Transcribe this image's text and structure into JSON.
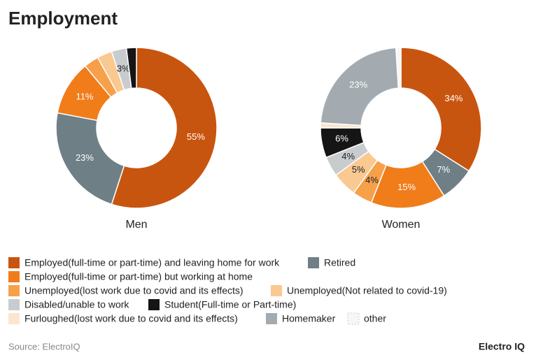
{
  "title": "Employment",
  "source": "Source: ElectroIQ",
  "brand": "Electro IQ",
  "legend": {
    "categories": [
      "Employed(full-time or part-time) and leaving home for work",
      "Retired",
      "Employed(full-time or part-time) but working at home",
      "Unemployed(lost work due to covid and its effects)",
      "Unemployed(Not related to covid-19)",
      "Disabled/unable to work",
      "Student(Full-time or Part-time)",
      "Furloughed(lost work due to covid and its effects)",
      "Homemaker",
      "other"
    ],
    "colors": [
      "#c8550f",
      "#6f7f86",
      "#f07d1a",
      "#f6a04a",
      "#fac891",
      "#c9ccce",
      "#151515",
      "#fbe5cf",
      "#a3abb0",
      "#f7f7f7"
    ]
  },
  "chart_data": [
    {
      "type": "pie",
      "title": "Men",
      "values": [
        55,
        23,
        11,
        3,
        3,
        3,
        2,
        0,
        0,
        0
      ],
      "value_labels": [
        "55%",
        "23%",
        "11%",
        null,
        null,
        "3%",
        null,
        null,
        null,
        null
      ]
    },
    {
      "type": "pie",
      "title": "Women",
      "values": [
        34,
        7,
        15,
        4,
        5,
        4,
        6,
        1,
        23,
        1
      ],
      "value_labels": [
        "34%",
        "7%",
        "15%",
        "4%",
        "5%",
        "4%",
        "6%",
        null,
        "23%",
        null
      ]
    }
  ]
}
